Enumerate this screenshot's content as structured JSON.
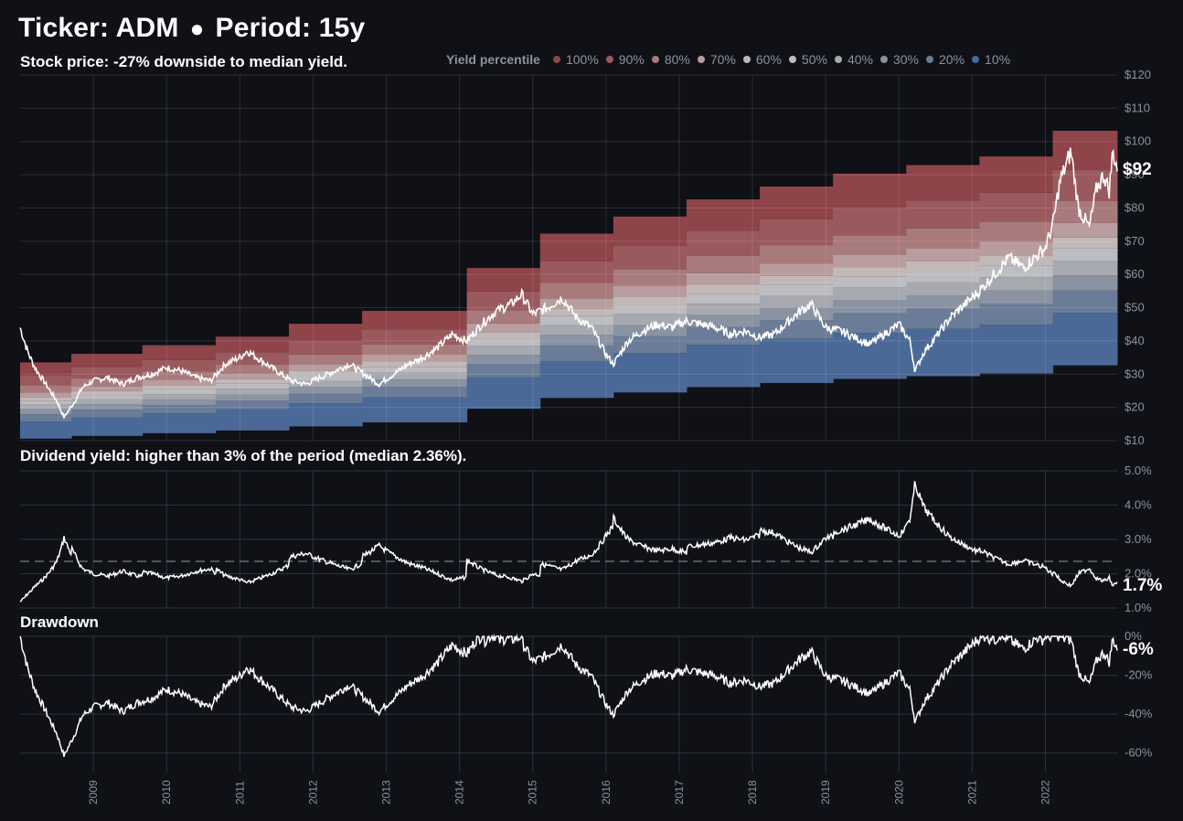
{
  "header": {
    "ticker_label": "Ticker: ADM",
    "separator": "●",
    "period_label": "Period: 15y"
  },
  "chart_data": [
    {
      "panel": "price",
      "type": "area",
      "title": "Stock price: -27% downside to median yield.",
      "ylim": [
        10,
        120
      ],
      "yticks": [
        "$10",
        "$20",
        "$30",
        "$40",
        "$50",
        "$60",
        "$70",
        "$80",
        "$90",
        "$100",
        "$110",
        "$120"
      ],
      "last_value_label": "$92",
      "legend_title": "Yield percentile",
      "legend": [
        {
          "label": "100%",
          "color": "#8e4448"
        },
        {
          "label": "90%",
          "color": "#9a5a5d"
        },
        {
          "label": "80%",
          "color": "#a97a7c"
        },
        {
          "label": "70%",
          "color": "#b99c9d"
        },
        {
          "label": "60%",
          "color": "#c3b8b8"
        },
        {
          "label": "50%",
          "color": "#bdbdc1"
        },
        {
          "label": "40%",
          "color": "#a6a9b0"
        },
        {
          "label": "30%",
          "color": "#8a93a2"
        },
        {
          "label": "20%",
          "color": "#6a7c97"
        },
        {
          "label": "10%",
          "color": "#4a6997"
        }
      ],
      "dividend_steps": [
        {
          "start": 2008.0,
          "annual_dividend": 0.52
        },
        {
          "start": 2008.7,
          "annual_dividend": 0.56
        },
        {
          "start": 2009.67,
          "annual_dividend": 0.6
        },
        {
          "start": 2010.67,
          "annual_dividend": 0.64
        },
        {
          "start": 2011.67,
          "annual_dividend": 0.7
        },
        {
          "start": 2012.67,
          "annual_dividend": 0.76
        },
        {
          "start": 2014.1,
          "annual_dividend": 0.96
        },
        {
          "start": 2015.1,
          "annual_dividend": 1.12
        },
        {
          "start": 2016.1,
          "annual_dividend": 1.2
        },
        {
          "start": 2017.1,
          "annual_dividend": 1.28
        },
        {
          "start": 2018.1,
          "annual_dividend": 1.34
        },
        {
          "start": 2019.1,
          "annual_dividend": 1.4
        },
        {
          "start": 2020.1,
          "annual_dividend": 1.44
        },
        {
          "start": 2021.1,
          "annual_dividend": 1.48
        },
        {
          "start": 2022.1,
          "annual_dividend": 1.6
        }
      ],
      "yield_percentile_bounds": [
        1.17,
        1.55,
        1.75,
        1.95,
        2.12,
        2.25,
        2.36,
        2.5,
        2.68,
        2.9,
        3.3,
        4.9
      ],
      "series": [
        {
          "name": "",
          "x": [
            2008.0,
            2008.1,
            2008.2,
            2008.35,
            2008.5,
            2008.6,
            2008.75,
            2008.85,
            2009.0,
            2009.2,
            2009.4,
            2009.6,
            2009.8,
            2010.0,
            2010.2,
            2010.4,
            2010.6,
            2010.8,
            2011.0,
            2011.1,
            2011.3,
            2011.5,
            2011.7,
            2011.9,
            2012.1,
            2012.3,
            2012.5,
            2012.7,
            2012.9,
            2013.1,
            2013.3,
            2013.5,
            2013.7,
            2013.9,
            2014.1,
            2014.3,
            2014.5,
            2014.7,
            2014.85,
            2015.0,
            2015.2,
            2015.4,
            2015.6,
            2015.8,
            2016.0,
            2016.1,
            2016.3,
            2016.5,
            2016.7,
            2016.9,
            2017.1,
            2017.3,
            2017.5,
            2017.7,
            2017.9,
            2018.1,
            2018.3,
            2018.5,
            2018.65,
            2018.8,
            2019.0,
            2019.2,
            2019.4,
            2019.6,
            2019.8,
            2020.0,
            2020.15,
            2020.22,
            2020.35,
            2020.5,
            2020.7,
            2020.9,
            2021.1,
            2021.3,
            2021.5,
            2021.7,
            2021.9,
            2022.0,
            2022.1,
            2022.2,
            2022.35,
            2022.45,
            2022.6,
            2022.7,
            2022.8,
            2022.87,
            2022.92,
            2022.98
          ],
          "y": [
            44,
            37,
            32,
            27,
            22,
            17,
            22,
            26,
            28,
            29,
            27,
            29,
            30,
            32,
            31,
            29,
            28,
            33,
            35,
            37,
            34,
            31,
            28,
            27,
            29,
            31,
            33,
            30,
            27,
            30,
            33,
            35,
            38,
            42,
            40,
            45,
            49,
            51,
            54,
            48,
            50,
            53,
            47,
            44,
            36,
            33,
            40,
            43,
            45,
            44,
            46,
            45,
            44,
            42,
            43,
            41,
            42,
            46,
            49,
            51,
            44,
            43,
            41,
            39,
            42,
            45,
            40,
            31,
            37,
            41,
            47,
            51,
            55,
            60,
            65,
            62,
            66,
            68,
            75,
            88,
            97,
            80,
            74,
            86,
            90,
            85,
            97,
            92
          ]
        }
      ]
    },
    {
      "panel": "yield",
      "type": "line",
      "title": "Dividend yield: higher than 3% of the period (median 2.36%).",
      "ylim": [
        1.0,
        5.0
      ],
      "yticks": [
        "1.0%",
        "2.0%",
        "3.0%",
        "4.0%",
        "5.0%"
      ],
      "median": 2.36,
      "last_value_label": "1.7%"
    },
    {
      "panel": "drawdown",
      "type": "area",
      "title": "Drawdown",
      "ylim": [
        -70,
        0
      ],
      "yticks": [
        "0%",
        "-20%",
        "-40%",
        "-60%"
      ],
      "last_value_label": "-6%",
      "xticks": [
        "2009",
        "2010",
        "2011",
        "2012",
        "2013",
        "2014",
        "2015",
        "2016",
        "2017",
        "2018",
        "2019",
        "2020",
        "2021",
        "2022"
      ]
    }
  ]
}
